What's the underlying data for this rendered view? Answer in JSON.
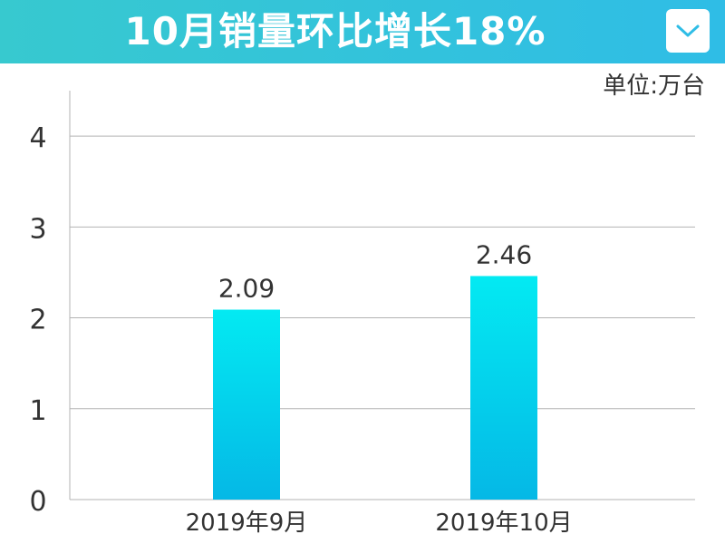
{
  "header": {
    "title": "10月销量环比增长18%",
    "menu_icon": "chevron-down-icon",
    "gradient": [
      "#37c9cf",
      "#2fbde6"
    ]
  },
  "chart_data": {
    "type": "bar",
    "unit_label": "单位:万台",
    "categories": [
      "2019年9月",
      "2019年10月"
    ],
    "values": [
      2.09,
      2.46
    ],
    "data_labels": [
      "2.09",
      "2.46"
    ],
    "yticks": [
      0,
      1,
      2,
      3,
      4
    ],
    "ylim": [
      0,
      4.5
    ],
    "grid": true,
    "bar_gradient": [
      "#03eaf2",
      "#05b8e6"
    ],
    "grid_color": "#b3b3b3",
    "text_color": "#333333"
  }
}
